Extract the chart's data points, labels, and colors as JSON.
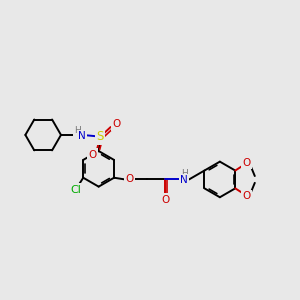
{
  "bg_color": "#e8e8e8",
  "lw": 1.4,
  "colors": {
    "C": "#000000",
    "N": "#0000cc",
    "O": "#cc0000",
    "S": "#cccc00",
    "Cl": "#00aa00",
    "H": "#777777"
  },
  "figsize": [
    3.0,
    3.0
  ],
  "dpi": 100
}
